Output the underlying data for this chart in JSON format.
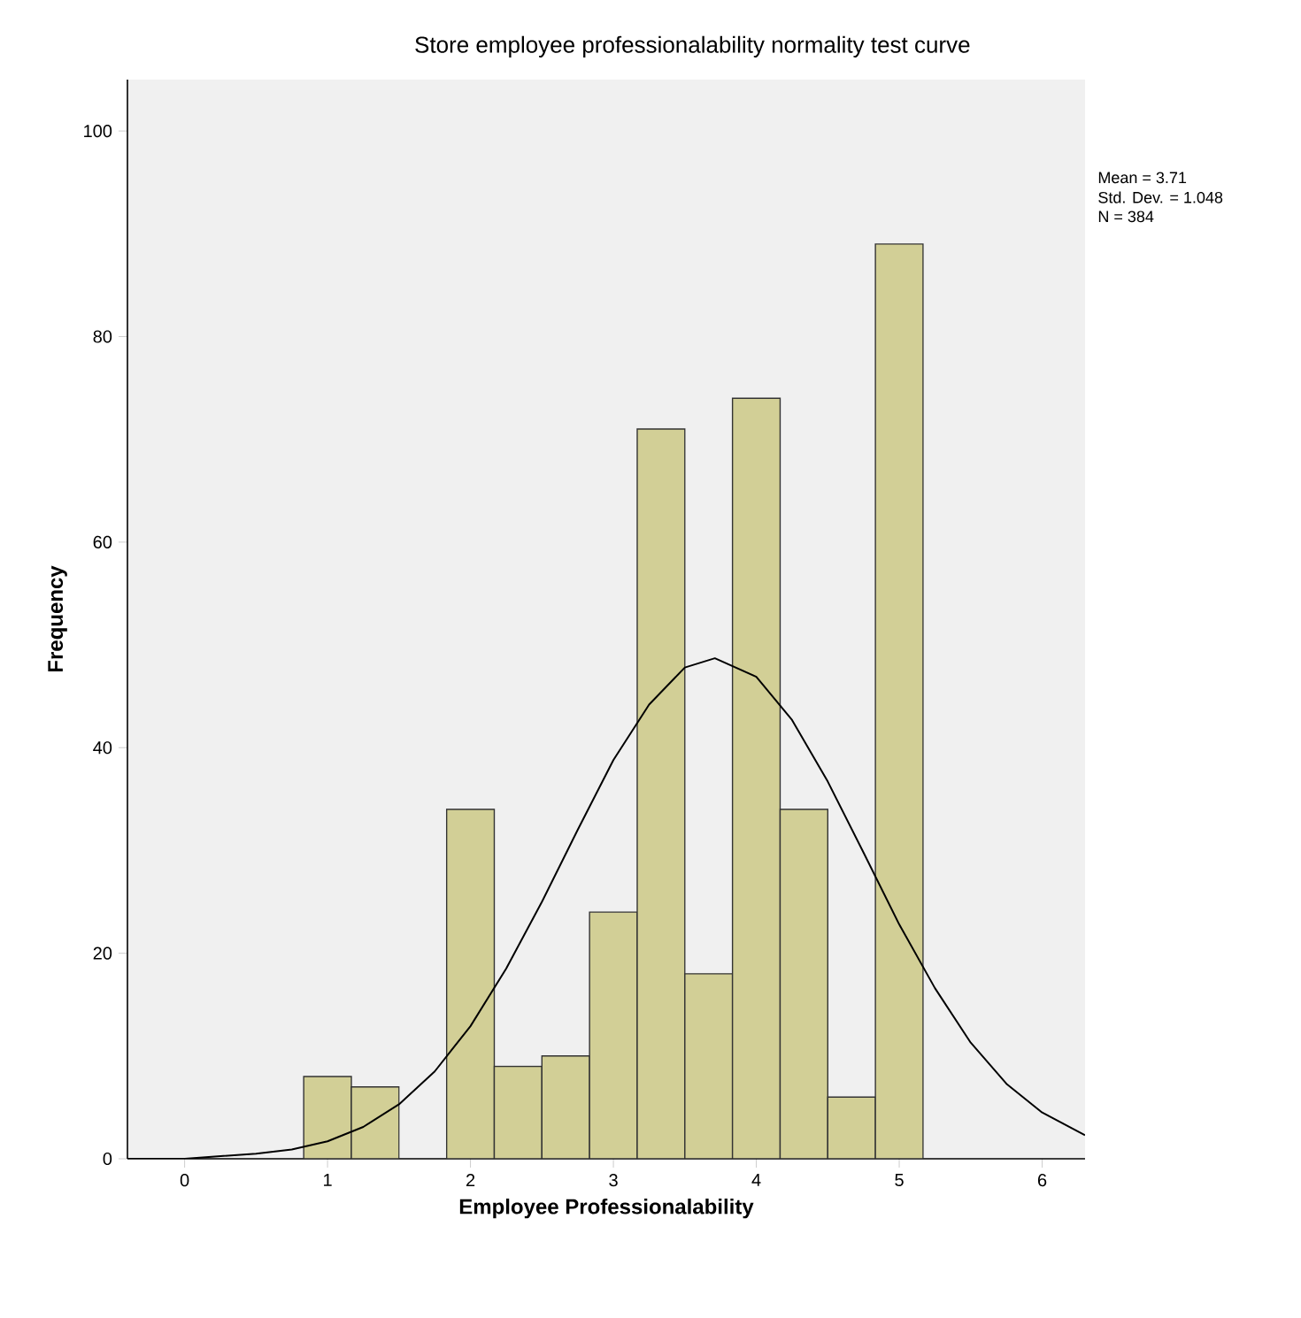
{
  "chart_data": {
    "type": "histogram",
    "title": "Store employee professionalability normality test curve",
    "xlabel": "Employee Professionalability",
    "ylabel": "Frequency",
    "bins": [
      0.8333,
      1.1667,
      1.5,
      1.8333,
      2.1667,
      2.5,
      2.8333,
      3.1667,
      3.5,
      3.8333,
      4.1667,
      4.5,
      4.8333,
      5.1667
    ],
    "values": [
      8,
      7,
      0,
      34,
      9,
      10,
      24,
      71,
      18,
      74,
      34,
      6,
      89
    ],
    "color": "#d2cf96",
    "series": [
      {
        "type": "line",
        "color": "#000000",
        "x": [
          -0.4,
          0,
          0.5,
          0.75,
          1,
          1.25,
          1.5,
          1.75,
          2,
          2.25,
          2.5,
          2.75,
          3,
          3.25,
          3.5,
          3.71,
          4,
          4.25,
          4.5,
          4.75,
          5,
          5.25,
          5.5,
          5.75,
          6,
          6.3
        ],
        "values": [
          0,
          0,
          0.5,
          0.9,
          1.7,
          3.1,
          5.3,
          8.5,
          12.9,
          18.5,
          25.0,
          32.0,
          38.8,
          44.2,
          47.8,
          48.7,
          46.9,
          42.7,
          36.7,
          29.8,
          22.8,
          16.6,
          11.3,
          7.3,
          4.5,
          2.3
        ]
      }
    ],
    "xlim": [
      -0.4,
      6.3
    ],
    "ylim": [
      0,
      105
    ],
    "xticks": [
      0,
      1,
      2,
      3,
      4,
      5,
      6
    ],
    "yticks": [
      0,
      20,
      40,
      60,
      80,
      100
    ],
    "grid": false,
    "annotations": [
      "Mean = 3.71",
      "Std. Dev. = 1.048",
      "N = 384"
    ]
  }
}
